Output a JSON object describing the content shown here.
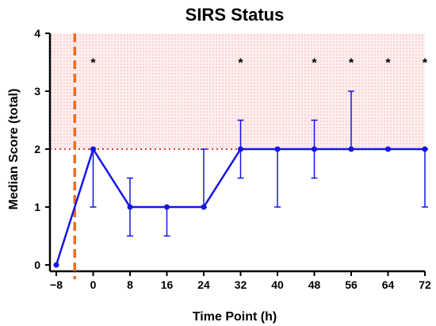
{
  "chart_data": {
    "type": "line",
    "title": "SIRS Status",
    "xlabel": "Time Point (h)",
    "ylabel": "Median Score (total)",
    "xlim": [
      -8,
      72
    ],
    "ylim": [
      0,
      4
    ],
    "x_ticks": [
      "−8",
      "0",
      "8",
      "16",
      "24",
      "32",
      "40",
      "48",
      "56",
      "64",
      "72"
    ],
    "x_tick_values": [
      -8,
      0,
      8,
      16,
      24,
      32,
      40,
      48,
      56,
      64,
      72
    ],
    "y_ticks": [
      "0",
      "1",
      "2",
      "3",
      "4"
    ],
    "y_tick_values": [
      0,
      1,
      2,
      3,
      4
    ],
    "series": [
      {
        "x": [
          -8,
          0,
          8,
          16,
          24,
          32,
          40,
          48,
          56,
          64,
          72
        ],
        "y": [
          0,
          2,
          1,
          1,
          1,
          2,
          2,
          2,
          2,
          2,
          2
        ],
        "err_low": [
          0,
          1,
          0.5,
          0.5,
          1,
          1.5,
          1,
          1.5,
          2,
          2,
          1
        ],
        "err_high": [
          0,
          2,
          1.5,
          1,
          2,
          2.5,
          2,
          2.5,
          3,
          2,
          2
        ],
        "color": "#1515e6"
      }
    ],
    "significance": {
      "label": "*",
      "x": [
        0,
        32,
        48,
        56,
        64,
        72
      ],
      "y": 3.5
    },
    "threshold_line": {
      "y": 2,
      "color": "#e8342a",
      "style": "dotted"
    },
    "shaded_region": {
      "y_from": 2,
      "y_to": 4,
      "color": "#f4a6a6"
    },
    "event_line": {
      "x": -4,
      "color": "#f26b1d",
      "style": "dashed"
    }
  }
}
